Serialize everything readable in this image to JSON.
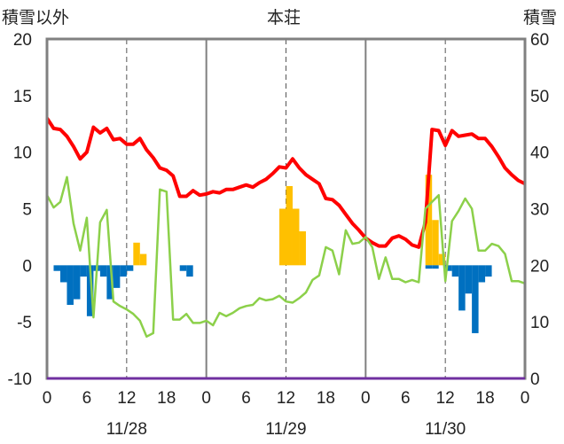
{
  "chart_data": {
    "type": "combo",
    "title": "本荘",
    "left_axis_label": "積雪以外",
    "right_axis_label": "積雪",
    "ylim_left": [
      -10,
      20
    ],
    "ylim_right": [
      0,
      60
    ],
    "y_ticks_left": [
      "20",
      "15",
      "10",
      "5",
      "0",
      "-5",
      "-10"
    ],
    "y_ticks_right": [
      "60",
      "50",
      "40",
      "30",
      "20",
      "10",
      "0"
    ],
    "x_range_hours": [
      0,
      72
    ],
    "x_tick_labels": [
      "0",
      "6",
      "12",
      "18",
      "0",
      "6",
      "12",
      "18",
      "0",
      "6",
      "12",
      "18",
      "0"
    ],
    "date_labels": [
      "11/28",
      "11/29",
      "11/30"
    ],
    "grid": {
      "solid_hours": [
        24,
        48
      ],
      "dashed_hours": [
        12,
        36,
        60
      ]
    },
    "colors": {
      "red": "#ff0000",
      "green": "#8cd04a",
      "orange": "#ffc000",
      "blue": "#0070c0",
      "purple": "#7030a0",
      "frame": "#808080"
    },
    "series": [
      {
        "kind": "line",
        "color_key": "red",
        "x": [
          0,
          1,
          2,
          3,
          4,
          5,
          6,
          7,
          8,
          9,
          10,
          11,
          12,
          13,
          14,
          15,
          16,
          17,
          18,
          19,
          20,
          21,
          22,
          23,
          24,
          25,
          26,
          27,
          28,
          29,
          30,
          31,
          32,
          33,
          34,
          35,
          36,
          37,
          38,
          39,
          40,
          41,
          42,
          43,
          44,
          45,
          46,
          47,
          48,
          49,
          50,
          51,
          52,
          53,
          54,
          55,
          56,
          57,
          58,
          59,
          60,
          61,
          62,
          63,
          64,
          65,
          66,
          67,
          68,
          69,
          70,
          71,
          72
        ],
        "values": [
          13.0,
          12.1,
          12.0,
          11.4,
          10.5,
          9.4,
          10.0,
          12.2,
          11.7,
          12.1,
          11.1,
          11.2,
          10.7,
          10.7,
          11.2,
          10.2,
          9.5,
          8.6,
          8.4,
          7.9,
          6.1,
          6.1,
          6.6,
          6.2,
          6.3,
          6.5,
          6.4,
          6.7,
          6.7,
          6.9,
          7.1,
          6.9,
          7.3,
          7.6,
          8.1,
          8.7,
          8.6,
          9.4,
          8.6,
          8.0,
          7.6,
          7.2,
          5.9,
          5.8,
          5.3,
          4.5,
          3.7,
          3.1,
          2.4,
          2.0,
          1.7,
          1.7,
          2.4,
          2.6,
          2.3,
          1.8,
          1.6,
          3.8,
          12.0,
          11.9,
          10.6,
          11.9,
          11.4,
          11.5,
          11.6,
          11.2,
          11.2,
          10.5,
          9.6,
          8.6,
          8.0,
          7.5,
          7.2
        ]
      },
      {
        "kind": "line",
        "color_key": "green",
        "x": [
          0,
          1,
          2,
          3,
          4,
          5,
          6,
          7,
          8,
          9,
          10,
          11,
          12,
          13,
          14,
          15,
          16,
          17,
          18,
          19,
          20,
          21,
          22,
          23,
          24,
          25,
          26,
          27,
          28,
          29,
          30,
          31,
          32,
          33,
          34,
          35,
          36,
          37,
          38,
          39,
          40,
          41,
          42,
          43,
          44,
          45,
          46,
          47,
          48,
          49,
          50,
          51,
          52,
          53,
          54,
          55,
          56,
          57,
          58,
          59,
          60,
          61,
          62,
          63,
          64,
          65,
          66,
          67,
          68,
          69,
          70,
          71,
          72
        ],
        "values": [
          6.2,
          5.1,
          5.6,
          7.8,
          3.7,
          1.3,
          4.2,
          -4.6,
          3.8,
          4.9,
          -3.2,
          -3.6,
          -3.9,
          -4.3,
          -4.9,
          -6.3,
          -6.0,
          6.7,
          6.5,
          -4.8,
          -4.8,
          -4.3,
          -5.1,
          -5.1,
          -4.9,
          -5.3,
          -4.2,
          -4.5,
          -4.2,
          -3.8,
          -3.6,
          -3.5,
          -2.9,
          -3.1,
          -3.0,
          -2.7,
          -3.2,
          -3.3,
          -2.9,
          -2.4,
          -1.3,
          -0.9,
          1.6,
          1.3,
          -0.8,
          3.1,
          1.9,
          2.0,
          2.5,
          1.6,
          -1.2,
          0.7,
          -1.2,
          -1.2,
          -1.5,
          -1.3,
          -1.5,
          5.0,
          5.6,
          6.2,
          -1.4,
          3.9,
          4.8,
          5.9,
          5.0,
          1.3,
          1.3,
          1.9,
          1.7,
          1.0,
          -1.4,
          -1.4,
          -1.6
        ]
      },
      {
        "kind": "bar",
        "color_key": "orange",
        "axis": "right",
        "start_hours": [
          13,
          14,
          35,
          36,
          37,
          38,
          57,
          58,
          59
        ],
        "values": [
          24,
          22,
          30,
          34,
          30,
          26,
          36,
          28,
          22
        ]
      },
      {
        "kind": "bar",
        "color_key": "blue",
        "axis": "left",
        "start_hours": [
          1,
          2,
          3,
          4,
          5,
          6,
          7,
          8,
          9,
          10,
          11,
          12,
          20,
          21,
          57,
          58,
          60,
          61,
          62,
          63,
          64,
          65,
          66
        ],
        "values": [
          -0.5,
          -1.5,
          -3.5,
          -3.0,
          -1.0,
          -4.5,
          -0.5,
          -1.0,
          -3.0,
          -2.0,
          -1.0,
          -0.5,
          -0.5,
          -1.0,
          -0.3,
          -0.3,
          -0.5,
          -1.0,
          -4.0,
          -2.5,
          -6.0,
          -1.5,
          -1.0
        ]
      }
    ]
  }
}
